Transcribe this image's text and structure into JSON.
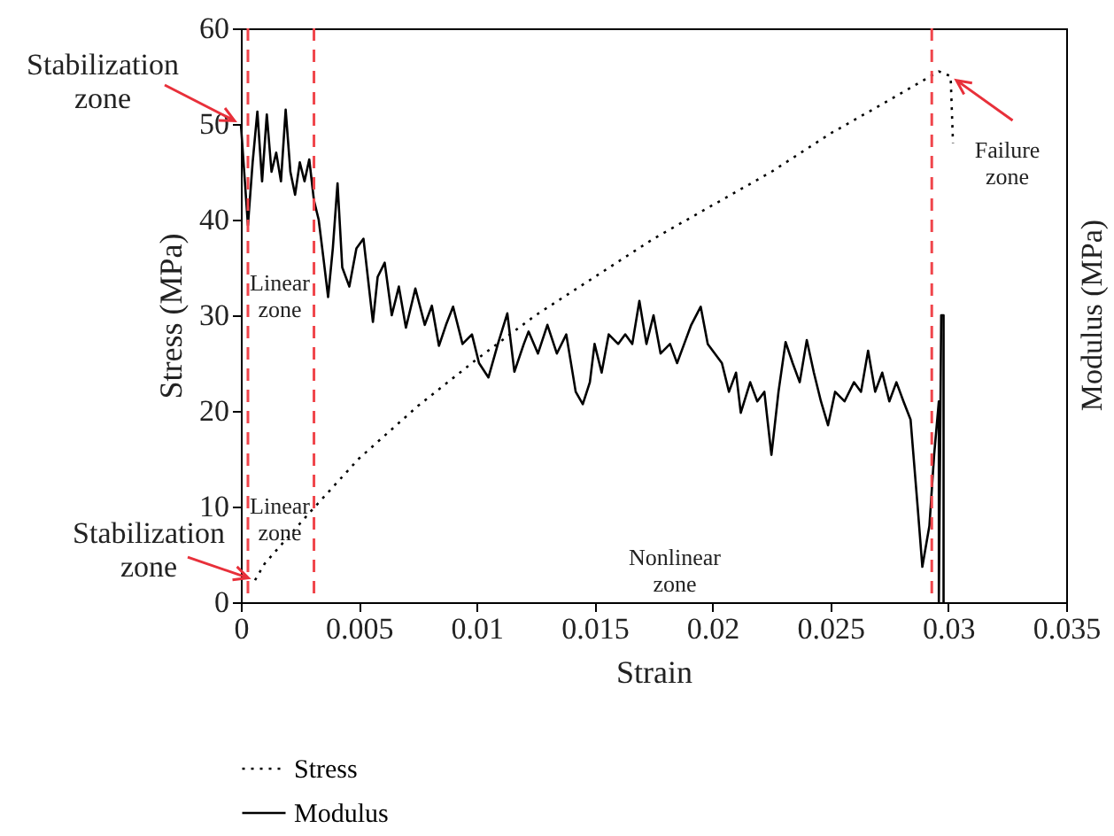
{
  "chart_data": {
    "type": "line",
    "xlabel": "Strain",
    "ylabel": "Stress (MPa)",
    "y2label": "Modulus (MPa)",
    "xlim": [
      0,
      0.035
    ],
    "xticks": [
      0,
      0.005,
      0.01,
      0.015,
      0.02,
      0.025,
      0.03,
      0.035
    ],
    "ylim": [
      0,
      60
    ],
    "yticks": [
      0,
      10,
      20,
      30,
      40,
      50,
      60
    ],
    "grid": false,
    "legend": "bottom",
    "series": [
      {
        "name": "Stress",
        "color": "#000000",
        "line_style": "dotted",
        "x": [
          0.0006,
          0.001,
          0.002,
          0.003,
          0.005,
          0.0075,
          0.01,
          0.0125,
          0.015,
          0.0175,
          0.02,
          0.0225,
          0.025,
          0.0275,
          0.0296,
          0.0301,
          0.0302
        ],
        "values": [
          2.3,
          4,
          6.8,
          9.6,
          15,
          20.5,
          25.4,
          30,
          34,
          38,
          41.5,
          45,
          49,
          52.5,
          55.5,
          55,
          48
        ]
      },
      {
        "name": "Modulus",
        "color": "#000000",
        "line_style": "solid",
        "x": [
          0,
          0.0003,
          0.0005,
          0.0007,
          0.0009,
          0.0011,
          0.0013,
          0.0015,
          0.0017,
          0.0019,
          0.0021,
          0.0023,
          0.0025,
          0.0027,
          0.0029,
          0.0031,
          0.0033,
          0.0035,
          0.0037,
          0.0039,
          0.0041,
          0.0043,
          0.0046,
          0.0049,
          0.0052,
          0.0056,
          0.0058,
          0.0061,
          0.0064,
          0.0067,
          0.007,
          0.0074,
          0.0078,
          0.0081,
          0.0084,
          0.0087,
          0.009,
          0.0094,
          0.0098,
          0.0101,
          0.0105,
          0.0109,
          0.0113,
          0.0116,
          0.012,
          0.0122,
          0.0126,
          0.013,
          0.0134,
          0.0138,
          0.0142,
          0.0145,
          0.0148,
          0.015,
          0.0153,
          0.0156,
          0.016,
          0.0163,
          0.0166,
          0.0169,
          0.0172,
          0.0175,
          0.0178,
          0.0182,
          0.0185,
          0.0188,
          0.0191,
          0.0195,
          0.0198,
          0.0201,
          0.0204,
          0.0207,
          0.021,
          0.0212,
          0.0216,
          0.0219,
          0.0222,
          0.0225,
          0.0228,
          0.0231,
          0.0234,
          0.0237,
          0.024,
          0.0243,
          0.0246,
          0.0249,
          0.0252,
          0.0256,
          0.026,
          0.0263,
          0.0266,
          0.0269,
          0.0272,
          0.0275,
          0.0278,
          0.0281,
          0.0284,
          0.0287,
          0.0289,
          0.0292,
          0.0294,
          0.0296,
          0.0296,
          0.0297,
          0.0298,
          0.0298
        ],
        "values": [
          50,
          39.4,
          46,
          51.3,
          44,
          51,
          45,
          47,
          44,
          51.5,
          45,
          42.6,
          46,
          44,
          46.3,
          42,
          40,
          36,
          31.9,
          37,
          43.8,
          35,
          33,
          37,
          38,
          29.3,
          34,
          35.5,
          30,
          33,
          28.7,
          32.8,
          29,
          31,
          26.8,
          29,
          30.9,
          27,
          28,
          25,
          23.5,
          27,
          30.2,
          24.1,
          27,
          28.3,
          26,
          29,
          26,
          28,
          22,
          20.7,
          23,
          27,
          24,
          28,
          27,
          28,
          27,
          31.5,
          27,
          30,
          26,
          27,
          25,
          27,
          29,
          30.9,
          27,
          26,
          25,
          22,
          24,
          19.8,
          23,
          21,
          22,
          15.4,
          22,
          27.2,
          25,
          23,
          27.4,
          24,
          21,
          18.5,
          22,
          21,
          23,
          22,
          26.3,
          22,
          24,
          21,
          23,
          21,
          19.1,
          10,
          3.7,
          8,
          15.4,
          21,
          0,
          30,
          30,
          0
        ]
      }
    ],
    "ref_lines": [
      {
        "axis": "x",
        "value": 0.0003,
        "color": "#f0454b",
        "line_style": "dashed"
      },
      {
        "axis": "x",
        "value": 0.0031,
        "color": "#f0454b",
        "line_style": "dashed"
      },
      {
        "axis": "x",
        "value": 0.0293,
        "color": "#f0454b",
        "line_style": "dashed"
      }
    ],
    "annotations": [
      {
        "text": "Stabilization zone",
        "x": 0,
        "y": 50
      },
      {
        "text": "Stabilization zone",
        "x": 0.0006,
        "y": 2.3
      },
      "Linear zone",
      "Linear zone",
      "Nonlinear zone",
      {
        "text": "Failure zone",
        "x": 0.0301,
        "y": 55
      }
    ]
  }
}
